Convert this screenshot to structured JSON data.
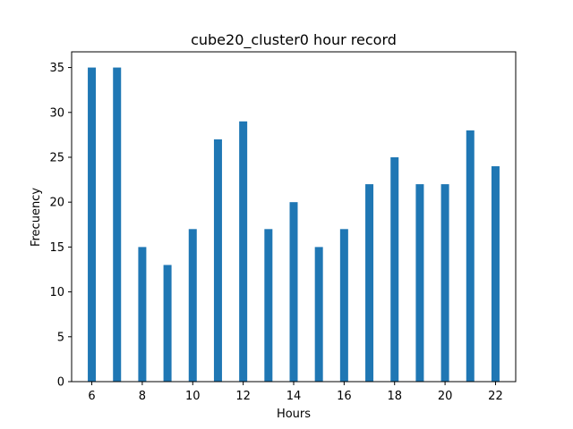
{
  "chart_data": {
    "type": "bar",
    "title": "cube20_cluster0 hour record",
    "xlabel": "Hours",
    "ylabel": "Frecuency",
    "x": [
      6,
      7,
      8,
      9,
      10,
      11,
      12,
      13,
      14,
      15,
      16,
      17,
      18,
      19,
      20,
      21,
      22
    ],
    "values": [
      35,
      35,
      15,
      13,
      17,
      27,
      29,
      17,
      20,
      15,
      17,
      22,
      25,
      22,
      22,
      28,
      24
    ],
    "xlim": [
      5.2,
      22.8
    ],
    "ylim": [
      0,
      36.75
    ],
    "xticks": [
      6,
      8,
      10,
      12,
      14,
      16,
      18,
      20,
      22
    ],
    "yticks": [
      0,
      5,
      10,
      15,
      20,
      25,
      30,
      35
    ],
    "bar_color": "#1f77b4",
    "grid": false,
    "legend": "none"
  }
}
